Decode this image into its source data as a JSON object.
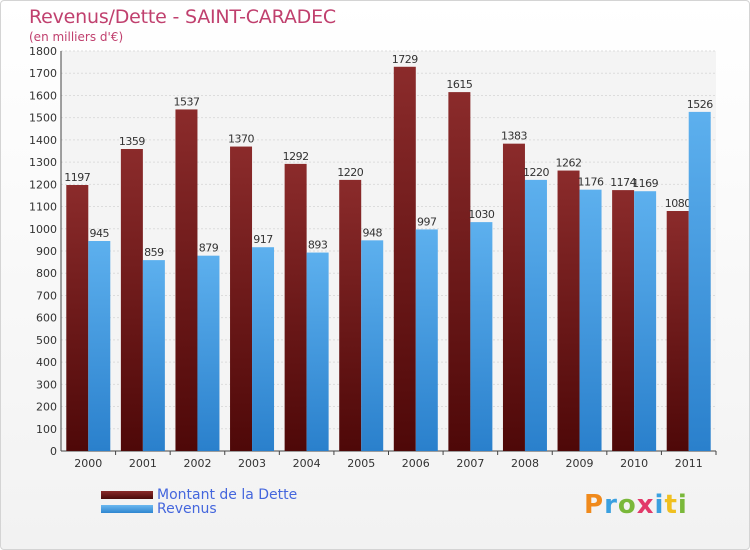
{
  "chart_data": {
    "type": "bar",
    "title": "Revenus/Dette - SAINT-CARADEC",
    "subtitle": "(en milliers d'€)",
    "categories": [
      "2000",
      "2001",
      "2002",
      "2003",
      "2004",
      "2005",
      "2006",
      "2007",
      "2008",
      "2009",
      "2010",
      "2011"
    ],
    "series": [
      {
        "name": "Montant de la Dette",
        "color": "#7a1a1a",
        "values": [
          1197,
          1359,
          1537,
          1370,
          1292,
          1220,
          1729,
          1615,
          1383,
          1262,
          1174,
          1080
        ]
      },
      {
        "name": "Revenus",
        "color": "#4da3e6",
        "values": [
          945,
          859,
          879,
          917,
          893,
          948,
          997,
          1030,
          1220,
          1176,
          1169,
          1526
        ]
      }
    ],
    "ylim": [
      0,
      1800
    ],
    "yticks": [
      0,
      100,
      200,
      300,
      400,
      500,
      600,
      700,
      800,
      900,
      1000,
      1100,
      1200,
      1300,
      1400,
      1500,
      1600,
      1700,
      1800
    ],
    "grid": true,
    "legend_position": "bottom-left"
  },
  "logo": {
    "text": "Proxiti"
  }
}
